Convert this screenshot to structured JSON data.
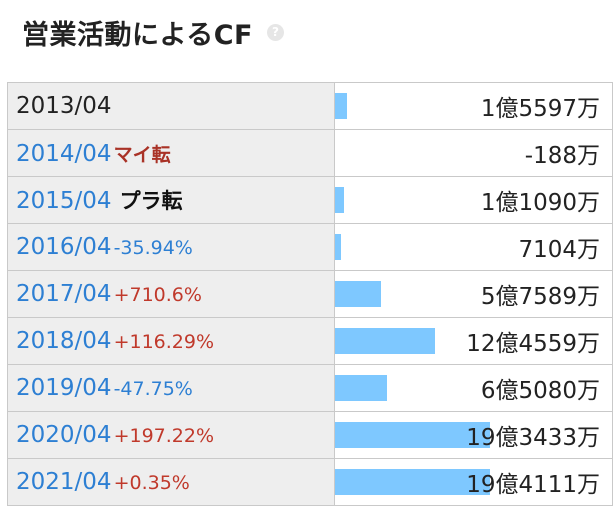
{
  "header": {
    "title": "営業活動によるCF",
    "help_icon": "?"
  },
  "colors": {
    "bar": "#7ec8ff",
    "year_link": "#2d7fd3",
    "positive": "#c0392b",
    "negative": "#2d7fd3"
  },
  "rows": [
    {
      "year": "2013/04",
      "change": "",
      "change_style": "",
      "value": "1億5597万",
      "bar_ratio": 0.0804
    },
    {
      "year": "2014/04",
      "change": "マイ転",
      "change_style": "red",
      "value": "-188万",
      "bar_ratio": 0
    },
    {
      "year": "2015/04",
      "change": "プラ転",
      "change_style": "blk",
      "value": "1億1090万",
      "bar_ratio": 0.0572
    },
    {
      "year": "2016/04",
      "change": "-35.94%",
      "change_style": "neg",
      "value": "7104万",
      "bar_ratio": 0.0366
    },
    {
      "year": "2017/04",
      "change": "+710.6%",
      "change_style": "pos",
      "value": "5億7589万",
      "bar_ratio": 0.297
    },
    {
      "year": "2018/04",
      "change": "+116.29%",
      "change_style": "pos",
      "value": "12億4559万",
      "bar_ratio": 0.6422
    },
    {
      "year": "2019/04",
      "change": "-47.75%",
      "change_style": "neg",
      "value": "6億5080万",
      "bar_ratio": 0.3355
    },
    {
      "year": "2020/04",
      "change": "+197.22%",
      "change_style": "pos",
      "value": "19億3433万",
      "bar_ratio": 0.9973
    },
    {
      "year": "2021/04",
      "change": "+0.35%",
      "change_style": "pos",
      "value": "19億4111万",
      "bar_ratio": 1.0
    }
  ]
}
